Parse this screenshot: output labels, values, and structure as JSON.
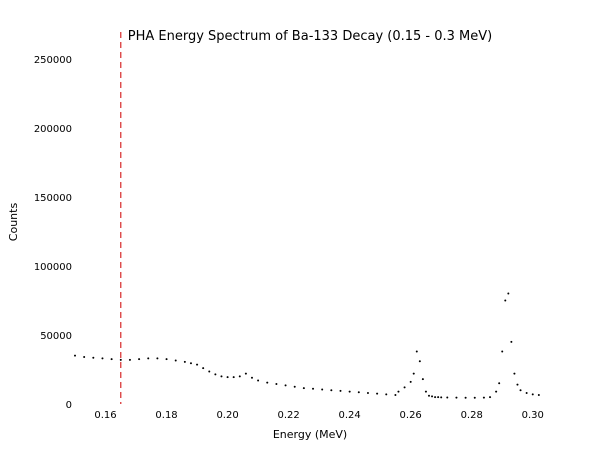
{
  "chart_data": {
    "type": "scatter",
    "title": "PHA Energy Spectrum of Ba-133 Decay (0.15 - 0.3 MeV)",
    "xlabel": "Energy (MeV)",
    "ylabel": "Counts",
    "xlim": [
      0.15,
      0.305
    ],
    "ylim": [
      0,
      260000
    ],
    "x_tick_values": [
      0.16,
      0.18,
      0.2,
      0.22,
      0.24,
      0.26,
      0.28,
      0.3
    ],
    "x_tick_labels": [
      "0.16",
      "0.18",
      "0.20",
      "0.22",
      "0.24",
      "0.26",
      "0.28",
      "0.30"
    ],
    "y_tick_values": [
      0,
      50000,
      100000,
      150000,
      200000,
      250000
    ],
    "y_tick_labels": [
      "0",
      "50000",
      "100000",
      "150000",
      "200000",
      "250000"
    ],
    "grid": false,
    "marker": {
      "color": "#000000",
      "style": "dot"
    },
    "reference_line": {
      "x": 0.165,
      "color": "#d62728",
      "style": "dashed"
    },
    "series": [
      {
        "x": [
          0.15,
          0.153,
          0.156,
          0.159,
          0.162,
          0.165,
          0.168,
          0.171,
          0.174,
          0.177,
          0.18,
          0.183,
          0.186,
          0.188,
          0.19,
          0.192,
          0.194,
          0.196,
          0.198,
          0.2,
          0.202,
          0.204,
          0.206,
          0.208,
          0.21,
          0.213,
          0.216,
          0.219,
          0.222,
          0.225,
          0.228,
          0.231,
          0.234,
          0.237,
          0.24,
          0.243,
          0.246,
          0.249,
          0.252,
          0.255,
          0.256,
          0.258,
          0.26,
          0.261,
          0.262,
          0.263,
          0.264,
          0.265,
          0.266,
          0.267,
          0.268,
          0.269,
          0.27,
          0.272,
          0.275,
          0.278,
          0.281,
          0.284,
          0.286,
          0.288,
          0.289,
          0.29,
          0.291,
          0.292,
          0.293,
          0.294,
          0.295,
          0.296,
          0.298,
          0.3,
          0.302
        ],
        "y": [
          35000,
          34000,
          33500,
          33000,
          32500,
          32000,
          32000,
          32500,
          33000,
          33000,
          32500,
          31500,
          30500,
          29500,
          28500,
          26000,
          23500,
          21500,
          20000,
          19500,
          19500,
          20000,
          22000,
          19000,
          17000,
          15500,
          14500,
          13500,
          12500,
          11500,
          11000,
          10500,
          10000,
          9500,
          9000,
          8500,
          8000,
          7500,
          7000,
          6500,
          9000,
          12000,
          16000,
          22000,
          38000,
          31000,
          18000,
          9000,
          6000,
          5500,
          5000,
          5000,
          4800,
          4700,
          4600,
          4500,
          4500,
          4600,
          5000,
          9000,
          15000,
          38000,
          75000,
          80000,
          45000,
          22000,
          14000,
          10000,
          8000,
          7000,
          6500
        ]
      }
    ]
  }
}
